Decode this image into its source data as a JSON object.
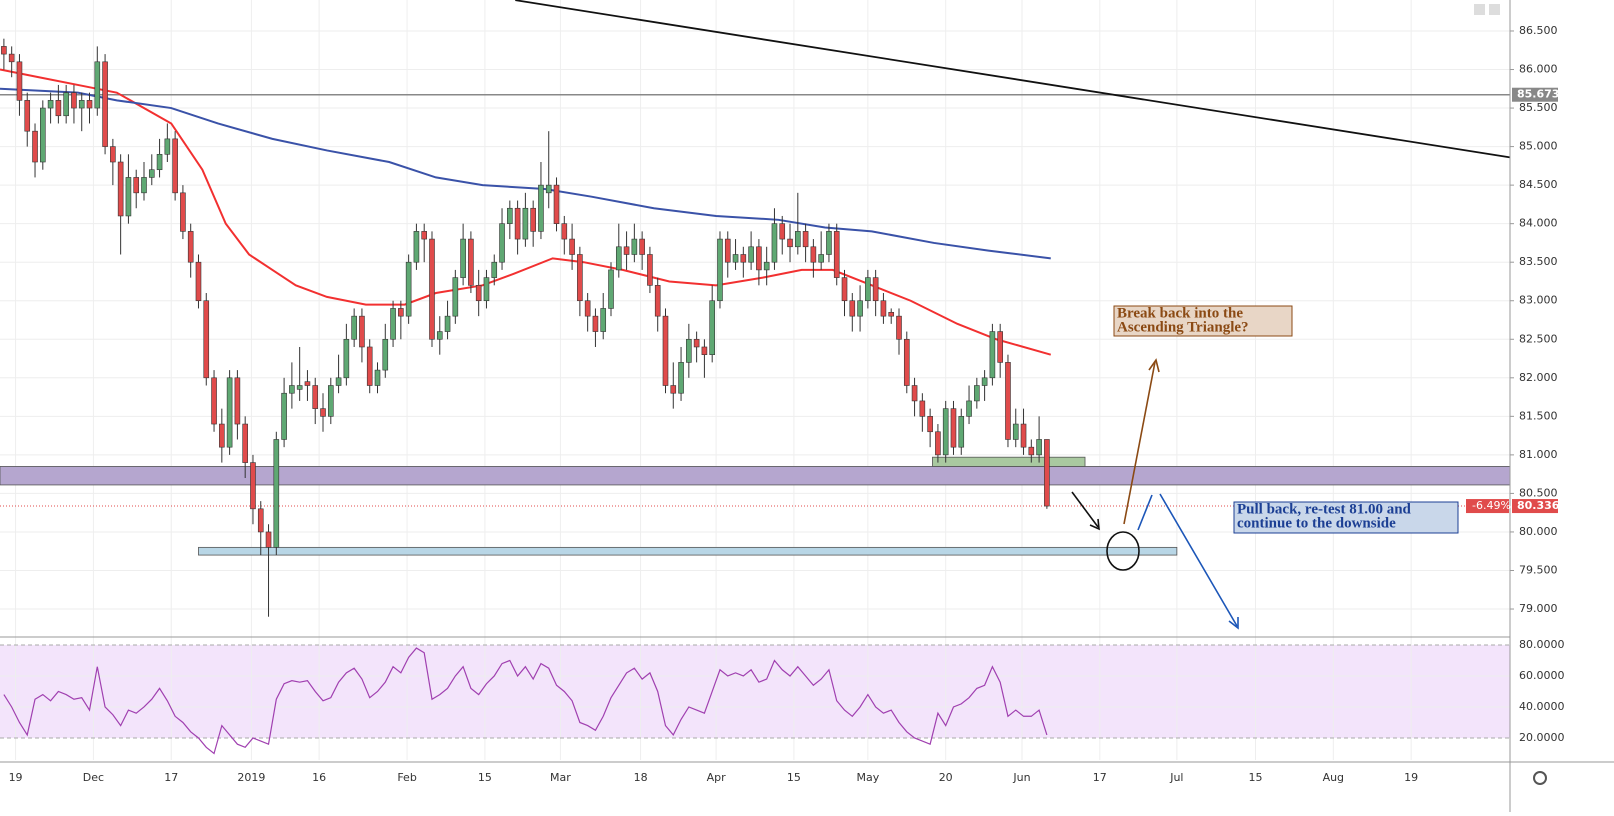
{
  "chart_data": {
    "type": "candlestick",
    "xlim": [
      0,
      194
    ],
    "ylim": [
      78.65,
      86.902
    ],
    "xticks": [
      {
        "value": 2,
        "label": "19"
      },
      {
        "value": 12,
        "label": "Dec"
      },
      {
        "value": 22,
        "label": "17"
      },
      {
        "value": 32.3,
        "label": "2019"
      },
      {
        "value": 41,
        "label": "16"
      },
      {
        "value": 52.3,
        "label": "Feb"
      },
      {
        "value": 62.3,
        "label": "15"
      },
      {
        "value": 72,
        "label": "Mar"
      },
      {
        "value": 82.3,
        "label": "18"
      },
      {
        "value": 92,
        "label": "Apr"
      },
      {
        "value": 102,
        "label": "15"
      },
      {
        "value": 111.5,
        "label": "May"
      },
      {
        "value": 121.5,
        "label": "20"
      },
      {
        "value": 131.3,
        "label": "Jun"
      },
      {
        "value": 141.3,
        "label": "17"
      },
      {
        "value": 151.2,
        "label": "Jul"
      },
      {
        "value": 161.3,
        "label": "15"
      },
      {
        "value": 171.3,
        "label": "Aug"
      },
      {
        "value": 181.3,
        "label": "19"
      }
    ],
    "yticks": [
      {
        "value": 86.5,
        "label": "86.500"
      },
      {
        "value": 86,
        "label": "86.000"
      },
      {
        "value": 85.5,
        "label": "85.500"
      },
      {
        "value": 85,
        "label": "85.000"
      },
      {
        "value": 84.5,
        "label": "84.500"
      },
      {
        "value": 84,
        "label": "84.000"
      },
      {
        "value": 83.5,
        "label": "83.500"
      },
      {
        "value": 83,
        "label": "83.000"
      },
      {
        "value": 82.5,
        "label": "82.500"
      },
      {
        "value": 82,
        "label": "82.000"
      },
      {
        "value": 81.5,
        "label": "81.500"
      },
      {
        "value": 81,
        "label": "81.000"
      },
      {
        "value": 80.5,
        "label": "80.500"
      },
      {
        "value": 80,
        "label": "80.000"
      },
      {
        "value": 79.5,
        "label": "79.500"
      },
      {
        "value": 79,
        "label": "79.000"
      }
    ],
    "grid": true,
    "up_color": "#5fa873",
    "down_color": "#e04b4b",
    "open": [
      86.3,
      86.2,
      86.1,
      85.6,
      85.2,
      84.8,
      85.5,
      85.6,
      85.4,
      85.7,
      85.5,
      85.6,
      85.5,
      86.1,
      85.0,
      84.8,
      84.1,
      84.6,
      84.4,
      84.6,
      84.7,
      84.9,
      85.1,
      84.4,
      83.9,
      83.5,
      83.0,
      82.0,
      81.4,
      81.1,
      82.0,
      81.4,
      80.9,
      80.3,
      80.0,
      79.8,
      81.2,
      81.8,
      81.85,
      81.95,
      81.9,
      81.6,
      81.5,
      81.9,
      82.0,
      82.5,
      82.8,
      82.4,
      81.9,
      82.1,
      82.5,
      82.9,
      82.8,
      83.5,
      83.9,
      83.8,
      82.5,
      82.6,
      82.8,
      83.3,
      83.8,
      83.2,
      83.0,
      83.3,
      83.5,
      84.0,
      84.2,
      83.8,
      84.2,
      83.9,
      84.4,
      84.5,
      84.0,
      83.8,
      83.6,
      83.0,
      82.8,
      82.6,
      82.9,
      83.4,
      83.7,
      83.6,
      83.8,
      83.6,
      83.2,
      82.8,
      81.9,
      81.8,
      82.2,
      82.5,
      82.4,
      82.3,
      83.0,
      83.8,
      83.5,
      83.6,
      83.5,
      83.7,
      83.4,
      83.5,
      84.0,
      83.8,
      83.7,
      83.9,
      83.7,
      83.5,
      83.6,
      83.9,
      83.3,
      83.0,
      82.8,
      83.0,
      83.3,
      83.0,
      82.85,
      82.8,
      82.5,
      81.9,
      81.7,
      81.5,
      81.3,
      81.0,
      81.6,
      81.1,
      81.5,
      81.7,
      81.9,
      82.0,
      82.6,
      82.2,
      81.2,
      81.4,
      81.1,
      81.0,
      81.2
    ],
    "high": [
      86.4,
      86.3,
      86.2,
      85.7,
      85.3,
      85.6,
      85.7,
      85.8,
      85.8,
      85.8,
      85.7,
      85.7,
      86.3,
      86.2,
      85.1,
      84.9,
      84.9,
      84.7,
      84.8,
      84.9,
      85.1,
      85.3,
      85.2,
      84.5,
      84.0,
      83.6,
      83.1,
      82.1,
      81.6,
      82.1,
      82.1,
      81.5,
      81.0,
      80.4,
      80.1,
      81.3,
      82.0,
      82.2,
      82.4,
      82.1,
      82.0,
      81.8,
      82.0,
      82.3,
      82.7,
      82.9,
      82.9,
      82.5,
      82.2,
      82.7,
      83.0,
      83.0,
      83.6,
      84.0,
      84.0,
      83.9,
      82.8,
      83.0,
      83.4,
      84.0,
      83.9,
      83.4,
      83.4,
      83.6,
      84.2,
      84.3,
      84.3,
      84.4,
      84.3,
      84.8,
      85.2,
      84.6,
      84.1,
      84.0,
      83.7,
      83.1,
      82.9,
      83.1,
      83.5,
      84.0,
      83.9,
      84.0,
      83.9,
      83.7,
      83.3,
      82.9,
      82.2,
      82.4,
      82.7,
      82.6,
      82.5,
      83.2,
      83.9,
      83.9,
      83.8,
      83.7,
      83.9,
      83.8,
      83.7,
      84.2,
      84.1,
      84.0,
      84.4,
      84.0,
      83.8,
      83.9,
      84.0,
      84.0,
      83.4,
      83.1,
      83.2,
      83.4,
      83.4,
      83.1,
      82.9,
      82.9,
      82.6,
      82.0,
      81.8,
      81.6,
      81.4,
      81.7,
      81.7,
      81.6,
      81.9,
      82.0,
      82.1,
      82.7,
      82.7,
      82.3,
      81.6,
      81.6,
      81.2,
      81.5,
      81.2
    ],
    "low": [
      86.0,
      85.9,
      85.4,
      85.0,
      84.6,
      84.7,
      85.3,
      85.3,
      85.3,
      85.3,
      85.2,
      85.3,
      85.4,
      84.9,
      84.5,
      83.6,
      84.0,
      84.2,
      84.3,
      84.5,
      84.6,
      84.8,
      84.3,
      83.8,
      83.3,
      82.9,
      81.9,
      81.3,
      80.9,
      81.0,
      81.2,
      80.7,
      80.1,
      79.7,
      78.9,
      79.7,
      81.1,
      81.6,
      81.7,
      81.7,
      81.4,
      81.3,
      81.4,
      81.8,
      81.9,
      82.4,
      82.2,
      81.8,
      81.8,
      82.0,
      82.4,
      82.5,
      82.7,
      83.4,
      83.5,
      82.4,
      82.3,
      82.5,
      82.7,
      83.2,
      83.1,
      82.8,
      82.9,
      83.2,
      83.4,
      83.8,
      83.6,
      83.7,
      83.7,
      83.8,
      84.2,
      83.9,
      83.6,
      83.4,
      82.8,
      82.6,
      82.4,
      82.5,
      82.8,
      83.3,
      83.4,
      83.5,
      83.4,
      83.1,
      82.6,
      81.8,
      81.6,
      81.7,
      82.0,
      82.2,
      82.0,
      82.2,
      82.9,
      83.3,
      83.4,
      83.3,
      83.4,
      83.2,
      83.2,
      83.4,
      83.6,
      83.5,
      83.6,
      83.5,
      83.3,
      83.4,
      83.5,
      83.2,
      82.8,
      82.6,
      82.6,
      82.9,
      82.8,
      82.7,
      82.7,
      82.3,
      81.8,
      81.5,
      81.3,
      81.1,
      80.9,
      80.9,
      81.0,
      81.0,
      81.4,
      81.6,
      81.7,
      81.9,
      82.0,
      81.1,
      81.1,
      81.0,
      80.9,
      80.9,
      80.3
    ],
    "close": [
      86.2,
      86.1,
      85.6,
      85.2,
      84.8,
      85.5,
      85.6,
      85.4,
      85.7,
      85.5,
      85.6,
      85.5,
      86.1,
      85.0,
      84.8,
      84.1,
      84.6,
      84.4,
      84.6,
      84.7,
      84.9,
      85.1,
      84.4,
      83.9,
      83.5,
      83.0,
      82.0,
      81.4,
      81.1,
      82.0,
      81.4,
      80.9,
      80.3,
      80.0,
      79.8,
      81.2,
      81.8,
      81.9,
      81.9,
      81.9,
      81.6,
      81.5,
      81.9,
      82.0,
      82.5,
      82.8,
      82.4,
      81.9,
      82.1,
      82.5,
      82.9,
      82.8,
      83.5,
      83.9,
      83.8,
      82.5,
      82.6,
      82.8,
      83.3,
      83.8,
      83.2,
      83.0,
      83.3,
      83.5,
      84.0,
      84.2,
      83.8,
      84.2,
      83.9,
      84.5,
      84.5,
      84.0,
      83.8,
      83.6,
      83.0,
      82.8,
      82.6,
      82.9,
      83.4,
      83.7,
      83.6,
      83.8,
      83.6,
      83.2,
      82.8,
      81.9,
      81.8,
      82.2,
      82.5,
      82.4,
      82.3,
      83.0,
      83.8,
      83.5,
      83.6,
      83.5,
      83.7,
      83.4,
      83.5,
      84.0,
      83.8,
      83.7,
      83.9,
      83.7,
      83.5,
      83.6,
      83.9,
      83.3,
      83.0,
      82.8,
      83.0,
      83.3,
      83.0,
      82.8,
      82.8,
      82.5,
      81.9,
      81.7,
      81.5,
      81.3,
      81.0,
      81.6,
      81.1,
      81.5,
      81.7,
      81.9,
      82.0,
      82.6,
      82.2,
      81.2,
      81.4,
      81.1,
      81.0,
      81.2,
      80.336
    ],
    "change": {
      "value": -6.49,
      "label": "-6.49%"
    },
    "level": {
      "value": 85.673,
      "label": "85.673",
      "color": "#888888"
    },
    "moving_averages": [
      {
        "color": "#f23030",
        "x": [
          0,
          5,
          10,
          15,
          22,
          26,
          29,
          32,
          35,
          38,
          42,
          47,
          52,
          56,
          62,
          66,
          71,
          75,
          80,
          86,
          92,
          98,
          103,
          107,
          112,
          117,
          123,
          128,
          135
        ],
        "values": [
          86.0,
          85.9,
          85.8,
          85.7,
          85.3,
          84.7,
          84.0,
          83.6,
          83.4,
          83.2,
          83.05,
          82.95,
          82.95,
          83.1,
          83.2,
          83.35,
          83.55,
          83.5,
          83.4,
          83.25,
          83.2,
          83.3,
          83.4,
          83.4,
          83.2,
          83.0,
          82.7,
          82.5,
          82.3
        ]
      },
      {
        "color": "#3a52a8",
        "x": [
          0,
          10,
          15,
          22,
          28,
          35,
          42,
          50,
          56,
          62,
          70,
          76,
          84,
          92,
          100,
          106,
          112,
          120,
          127,
          135
        ],
        "values": [
          85.75,
          85.7,
          85.6,
          85.5,
          85.3,
          85.1,
          84.95,
          84.8,
          84.6,
          84.5,
          84.45,
          84.35,
          84.2,
          84.1,
          84.05,
          83.95,
          83.9,
          83.75,
          83.65,
          83.55
        ]
      }
    ],
    "trendline": {
      "x": [
        66.2,
        194
      ],
      "values": [
        86.9,
        84.86
      ]
    },
    "zones": [
      {
        "x": [
          0,
          194
        ],
        "low": 80.61,
        "high": 80.85,
        "color": "#b5a6cf"
      },
      {
        "x": [
          25.5,
          151.2
        ],
        "low": 79.7,
        "high": 79.8,
        "color": "#b8d6e6"
      },
      {
        "x": [
          119.8,
          139.4
        ],
        "low": 80.85,
        "high": 80.97,
        "color": "#a9c9a0"
      }
    ],
    "annotations": [
      {
        "lines": [
          "Break back into the",
          "Ascending Triangle?"
        ],
        "color": "#8b4a14"
      },
      {
        "lines": [
          "Pull back, re-test 81.00 and",
          "continue to the downside"
        ],
        "color": "#1c3f94"
      }
    ],
    "rsi": {
      "color": "#a040b0",
      "ylim": [
        5.8,
        84.5
      ],
      "yticks": [
        {
          "value": 80,
          "label": "80.0000"
        },
        {
          "value": 60,
          "label": "60.0000"
        },
        {
          "value": 40,
          "label": "40.0000"
        },
        {
          "value": 20,
          "label": "20.0000"
        }
      ],
      "values": [
        48,
        40,
        30,
        22,
        45,
        48,
        44,
        50,
        48,
        45,
        46,
        38,
        66,
        40,
        35,
        28,
        38,
        36,
        40,
        45,
        52,
        44,
        34,
        30,
        24,
        20,
        14,
        10,
        28,
        22,
        16,
        14,
        20,
        18,
        16,
        45,
        55,
        57,
        56,
        57,
        50,
        44,
        46,
        56,
        62,
        65,
        58,
        46,
        50,
        56,
        66,
        62,
        72,
        78,
        75,
        45,
        48,
        52,
        60,
        66,
        52,
        48,
        55,
        60,
        68,
        70,
        60,
        66,
        58,
        68,
        65,
        54,
        50,
        44,
        30,
        28,
        25,
        34,
        46,
        54,
        62,
        65,
        58,
        62,
        50,
        28,
        22,
        32,
        40,
        38,
        36,
        50,
        64,
        60,
        62,
        60,
        64,
        56,
        58,
        70,
        64,
        60,
        66,
        60,
        54,
        58,
        64,
        44,
        38,
        34,
        40,
        48,
        40,
        36,
        38,
        30,
        24,
        20,
        18,
        16,
        36,
        28,
        40,
        42,
        46,
        52,
        54,
        66,
        56,
        34,
        38,
        34,
        34,
        38,
        22
      ]
    }
  }
}
